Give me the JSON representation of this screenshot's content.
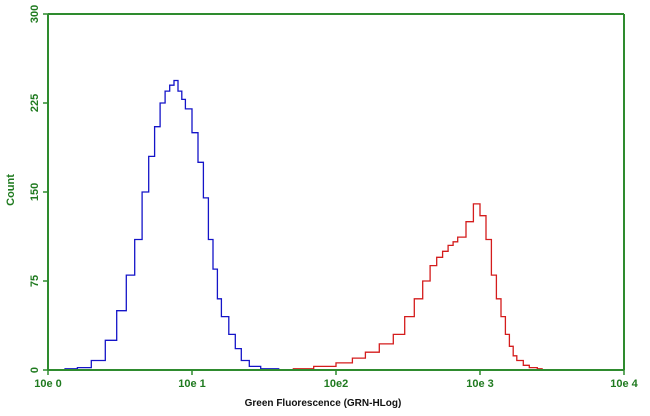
{
  "colors": {
    "axis": "#2e8b2e",
    "tick_text": "#1f7a1f",
    "series_blue": "#1414c8",
    "series_red": "#d41c1c",
    "background": "#ffffff"
  },
  "chart_data": {
    "type": "line",
    "title": "",
    "xlabel": "Green Fluorescence (GRN-HLog)",
    "ylabel": "Count",
    "x_scale": "log",
    "xlim": [
      1,
      10000
    ],
    "ylim": [
      0,
      300
    ],
    "grid": false,
    "x_ticks": [
      {
        "value": 1,
        "label": "10e 0"
      },
      {
        "value": 10,
        "label": "10e 1"
      },
      {
        "value": 100,
        "label": "10e2"
      },
      {
        "value": 1000,
        "label": "10e 3"
      },
      {
        "value": 10000,
        "label": "10e 4"
      }
    ],
    "y_ticks": [
      {
        "value": 0,
        "label": "0"
      },
      {
        "value": 75,
        "label": "75"
      },
      {
        "value": 150,
        "label": "150"
      },
      {
        "value": 225,
        "label": "225"
      },
      {
        "value": 300,
        "label": "300"
      }
    ],
    "series": [
      {
        "color": "#1414c8",
        "x": [
          1.3,
          1.6,
          2.0,
          2.5,
          3.0,
          3.5,
          4.0,
          4.5,
          5.0,
          5.5,
          6.0,
          6.5,
          7.0,
          7.5,
          8.0,
          8.5,
          9.0,
          10,
          11,
          12,
          13,
          14,
          15,
          16,
          18,
          20,
          22,
          25,
          30,
          40,
          60
        ],
        "y": [
          1,
          2,
          8,
          25,
          50,
          80,
          110,
          150,
          180,
          205,
          225,
          235,
          240,
          244,
          235,
          228,
          220,
          200,
          175,
          145,
          110,
          85,
          60,
          45,
          30,
          18,
          8,
          3,
          1,
          0,
          0
        ]
      },
      {
        "color": "#d41c1c",
        "x": [
          50,
          70,
          100,
          130,
          160,
          200,
          250,
          300,
          350,
          400,
          450,
          500,
          550,
          600,
          650,
          700,
          800,
          900,
          1000,
          1100,
          1200,
          1300,
          1400,
          1500,
          1600,
          1700,
          1800,
          2000,
          2200,
          2500,
          2700
        ],
        "y": [
          1,
          3,
          6,
          10,
          15,
          22,
          30,
          45,
          60,
          75,
          88,
          95,
          100,
          105,
          108,
          112,
          125,
          140,
          130,
          110,
          80,
          60,
          45,
          30,
          20,
          12,
          8,
          4,
          2,
          1,
          0
        ]
      }
    ]
  }
}
